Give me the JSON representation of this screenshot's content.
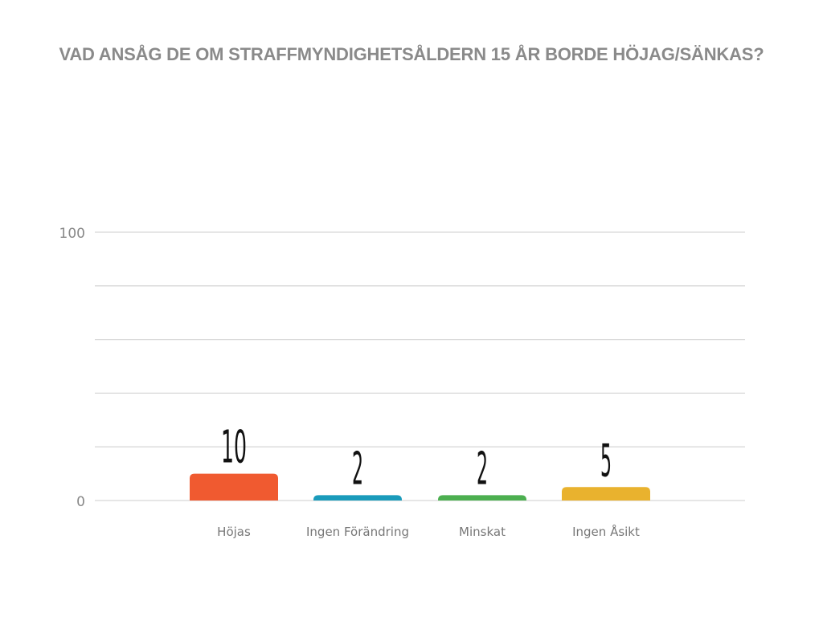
{
  "chart_data": {
    "type": "bar",
    "title": "VAD ANSÅG DE OM STRAFFMYNDIGHETSÅLDERN 15 ÅR BORDE HÖJAG/SÄNKAS?",
    "categories": [
      "Höjas",
      "Ingen Förändring",
      "Minskat",
      "Ingen Åsikt"
    ],
    "values": [
      10,
      2,
      2,
      5
    ],
    "colors": [
      "#f05a30",
      "#1a9bbb",
      "#4caf50",
      "#e9b22e"
    ],
    "ylim": [
      0,
      100
    ],
    "ytick_labels": [
      "0",
      "100"
    ],
    "gridlines": [
      0,
      20,
      40,
      60,
      80,
      100
    ],
    "grid": true,
    "xlabel": "",
    "ylabel": ""
  }
}
